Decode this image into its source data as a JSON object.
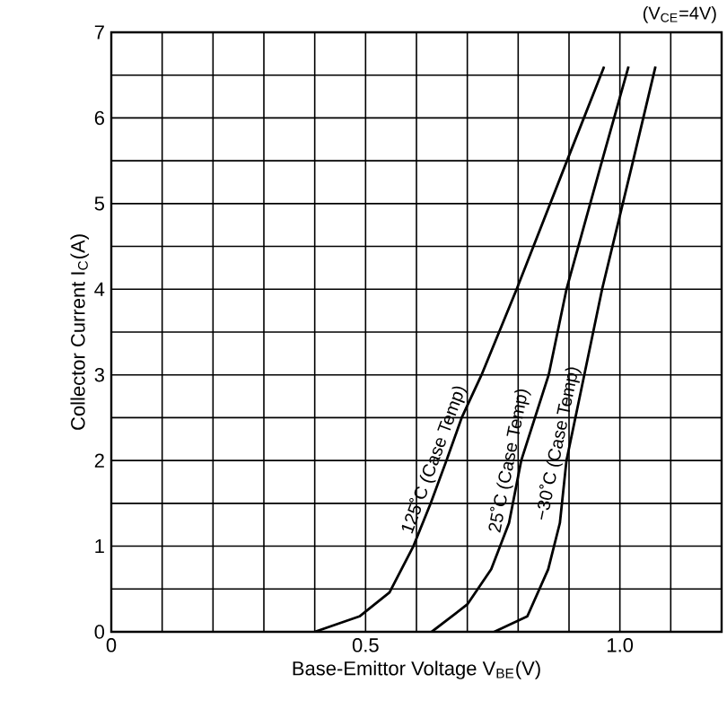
{
  "chart_data": {
    "type": "line",
    "subtitle": "(V$_{CE}$=4V)",
    "xlabel": "Base-Emittor Voltage V$_{BE}$(V)",
    "ylabel": "Collector Current I$_{C}$(A)",
    "xlim": [
      0,
      1.2
    ],
    "ylim": [
      0,
      7
    ],
    "xticks": [
      0,
      {
        "value": 0.1,
        "label": null
      },
      {
        "value": 0.2,
        "label": null
      },
      {
        "value": 0.3,
        "label": null
      },
      {
        "value": 0.4,
        "label": null
      },
      0.5,
      {
        "value": 0.6,
        "label": null
      },
      {
        "value": 0.7,
        "label": null
      },
      {
        "value": 0.8,
        "label": null
      },
      {
        "value": 0.9,
        "label": null
      },
      {
        "value": 1.0,
        "label": "1.0"
      },
      {
        "value": 1.1,
        "label": null
      },
      {
        "value": 1.2,
        "label": null
      }
    ],
    "yticks": [
      0,
      {
        "value": 0.5,
        "label": null
      },
      1,
      {
        "value": 1.5,
        "label": null
      },
      2,
      {
        "value": 2.5,
        "label": null
      },
      3,
      {
        "value": 3.5,
        "label": null
      },
      4,
      {
        "value": 4.5,
        "label": null
      },
      5,
      {
        "value": 5.5,
        "label": null
      },
      6,
      {
        "value": 6.5,
        "label": null
      },
      7
    ],
    "grid": true,
    "legend": false,
    "marker": "none",
    "line_style": "solid",
    "series": [
      {
        "name": "125˚C (Case Temp)",
        "color": "#000000",
        "x": [
          0.4,
          0.488,
          0.547,
          0.594,
          0.628,
          0.659,
          0.689,
          0.728,
          0.797,
          0.896,
          0.969
        ],
        "values": [
          0,
          0.18,
          0.46,
          1.0,
          1.5,
          2.0,
          2.5,
          3.0,
          4.0,
          5.5,
          6.6
        ]
      },
      {
        "name": "25˚C (Case Temp)",
        "color": "#000000",
        "x": [
          0.63,
          0.7,
          0.747,
          0.782,
          0.806,
          0.86,
          0.895,
          0.965,
          1.017
        ],
        "values": [
          0,
          0.32,
          0.73,
          1.27,
          2.0,
          3.0,
          4.0,
          5.5,
          6.6
        ]
      },
      {
        "name": "−30˚C (Case Temp)",
        "color": "#000000",
        "x": [
          0.753,
          0.818,
          0.859,
          0.882,
          0.895,
          0.93,
          0.965,
          1.026,
          1.07
        ],
        "values": [
          0,
          0.18,
          0.73,
          1.27,
          2.0,
          3.0,
          4.0,
          5.5,
          6.6
        ]
      }
    ]
  }
}
